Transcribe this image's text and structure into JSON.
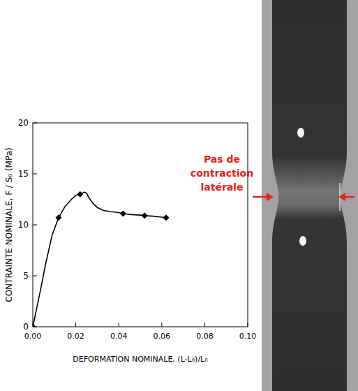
{
  "chart_data": {
    "type": "line",
    "x_label": "DEFORMATION NOMINALE, (L-L₀)/L₀",
    "y_label": "CONTRAINTE NOMINALE, F / S₀ (MPa)",
    "xlim": [
      0,
      0.1
    ],
    "xticks": [
      {
        "value": 0,
        "label": "0.00"
      },
      0.02,
      0.04,
      0.06,
      0.08,
      {
        "value": 0.1,
        "label": "0.10"
      }
    ],
    "ylim": [
      0,
      20
    ],
    "yticks": [
      0,
      5,
      10,
      15,
      20
    ],
    "series": [
      {
        "type": "line",
        "color": "#000000",
        "x": [
          0,
          0.003,
          0.006,
          0.009,
          0.012,
          0.015,
          0.018,
          0.02,
          0.022,
          0.024,
          0.025,
          0.026,
          0.028,
          0.03,
          0.033,
          0.036,
          0.04,
          0.042,
          0.046,
          0.05,
          0.052,
          0.056,
          0.06,
          0.062
        ],
        "values": [
          0,
          3.0,
          6.2,
          9.0,
          10.7,
          11.8,
          12.5,
          12.9,
          13.0,
          13.2,
          13.1,
          12.7,
          12.1,
          11.7,
          11.4,
          11.3,
          11.2,
          11.1,
          11.0,
          10.95,
          10.9,
          10.85,
          10.75,
          10.7
        ]
      },
      {
        "type": "scatter",
        "marker": "diamond",
        "color": "#000000",
        "x": [
          0,
          0.012,
          0.022,
          0.042,
          0.052,
          0.062
        ],
        "values": [
          0,
          10.7,
          13.0,
          11.1,
          10.9,
          10.7
        ]
      }
    ],
    "annotations": [
      {
        "text": "Pas de contraction latérale",
        "color": "#e8221b"
      }
    ]
  }
}
